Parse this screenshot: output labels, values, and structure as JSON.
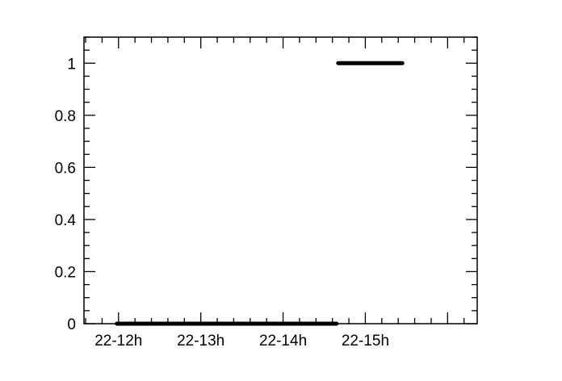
{
  "chart_data": {
    "type": "line",
    "title": "",
    "xlabel": "",
    "ylabel": "",
    "x_unit": "hour",
    "xlim": [
      11.58,
      16.36
    ],
    "ylim": [
      0,
      1.1
    ],
    "x_ticks": [
      {
        "value": 12,
        "label": "22-12h"
      },
      {
        "value": 13,
        "label": "22-13h"
      },
      {
        "value": 14,
        "label": "22-14h"
      },
      {
        "value": 15,
        "label": "22-15h"
      }
    ],
    "y_ticks": [
      {
        "value": 0,
        "label": "0"
      },
      {
        "value": 0.2,
        "label": "0.2"
      },
      {
        "value": 0.4,
        "label": "0.4"
      },
      {
        "value": 0.6,
        "label": "0.6"
      },
      {
        "value": 0.8,
        "label": "0.8"
      },
      {
        "value": 1,
        "label": "1"
      }
    ],
    "grid": false,
    "series": [
      {
        "color": "#000000",
        "segments": [
          {
            "x_start": 11.98,
            "x_end": 14.65,
            "y": 0
          },
          {
            "x_start": 14.67,
            "x_end": 15.45,
            "y": 1
          }
        ]
      }
    ]
  }
}
